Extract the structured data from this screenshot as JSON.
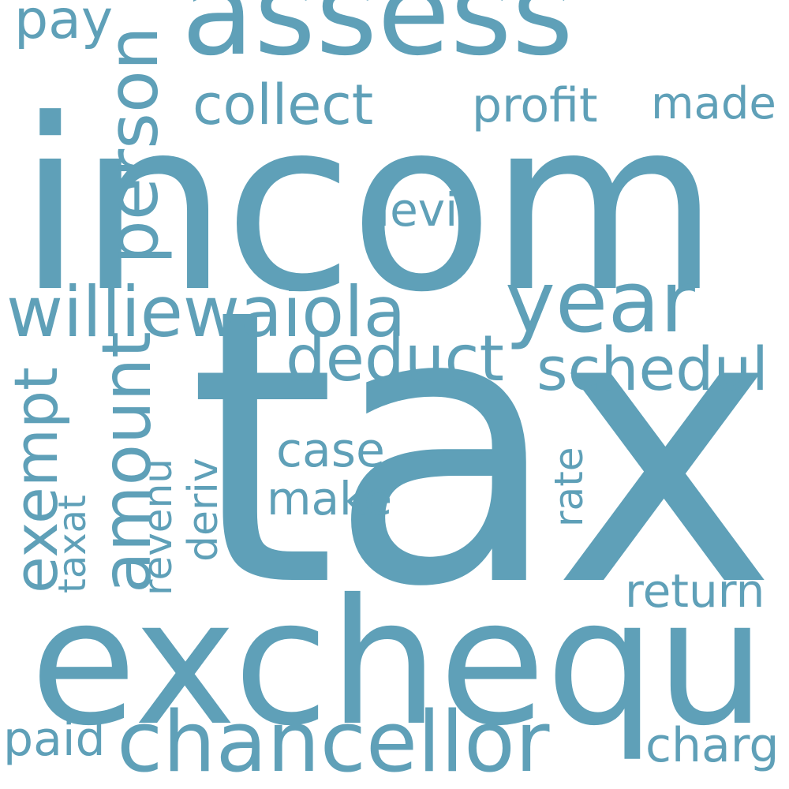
{
  "cloud": {
    "color": "#5fa0b8",
    "background": "#ffffff",
    "words": {
      "tax": "tax",
      "incom": "incom",
      "exchequ": "exchequ",
      "assess": "assess",
      "chancellor": "chancellor",
      "year": "year",
      "williewaiola": "williewaiola",
      "person": "person",
      "amount": "amount",
      "deduct": "deduct",
      "schedul": "schedul",
      "collect": "collect",
      "exempt": "exempt",
      "pay": "pay",
      "profit": "profit",
      "made": "made",
      "levi": "levi",
      "case": "case",
      "make": "make",
      "return": "return",
      "rate": "rate",
      "revenu": "revenu",
      "deriv": "deriv",
      "taxat": "taxat",
      "paid": "paid",
      "charg": "charg"
    }
  }
}
